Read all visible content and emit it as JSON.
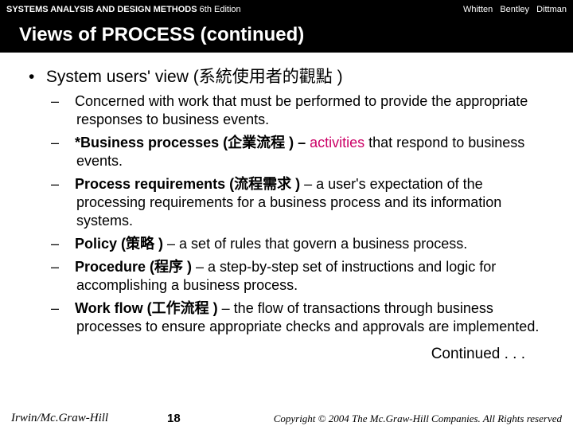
{
  "header": {
    "book_title": "SYSTEMS ANALYSIS AND DESIGN METHODS",
    "edition": " 6th Edition",
    "authors": [
      "Whitten",
      "Bentley",
      "Dittman"
    ]
  },
  "title": "Views of PROCESS (continued)",
  "main_bullet": {
    "prefix": "System users' view (",
    "cjk": "系統使用者的觀點",
    "suffix": "   )"
  },
  "items": [
    {
      "segments": [
        {
          "t": "Concerned with work that must be performed to provide the appropriate responses to business events."
        }
      ]
    },
    {
      "segments": [
        {
          "t": "*Business processes (",
          "b": true
        },
        {
          "t": "企業流程",
          "b": true
        },
        {
          "t": "  ) – ",
          "b": true
        },
        {
          "t": "activities",
          "hl": true
        },
        {
          "t": " that respond to business events."
        }
      ]
    },
    {
      "segments": [
        {
          "t": "Process requirements (",
          "b": true
        },
        {
          "t": "流程需求",
          "b": true
        },
        {
          "t": "  )",
          "b": true
        },
        {
          "t": " – a user's expectation of the processing requirements for a business process and its information systems."
        }
      ]
    },
    {
      "segments": [
        {
          "t": "Policy (",
          "b": true
        },
        {
          "t": "策略",
          "b": true
        },
        {
          "t": " )",
          "b": true
        },
        {
          "t": " – a set of rules that govern a business process."
        }
      ]
    },
    {
      "segments": [
        {
          "t": "Procedure (",
          "b": true
        },
        {
          "t": "程序",
          "b": true
        },
        {
          "t": " )",
          "b": true
        },
        {
          "t": " – a step-by-step set of instructions and logic for accomplishing a business process."
        }
      ]
    },
    {
      "segments": [
        {
          "t": "Work flow (",
          "b": true
        },
        {
          "t": "工作流程",
          "b": true
        },
        {
          "t": "  )",
          "b": true
        },
        {
          "t": " – the flow of transactions through business processes to ensure appropriate checks and approvals are implemented."
        }
      ]
    }
  ],
  "continued": "Continued . . .",
  "footer": {
    "publisher": "Irwin/Mc.Graw-Hill",
    "page": "18",
    "copyright": "Copyright © 2004 The Mc.Graw-Hill Companies. All Rights reserved"
  }
}
